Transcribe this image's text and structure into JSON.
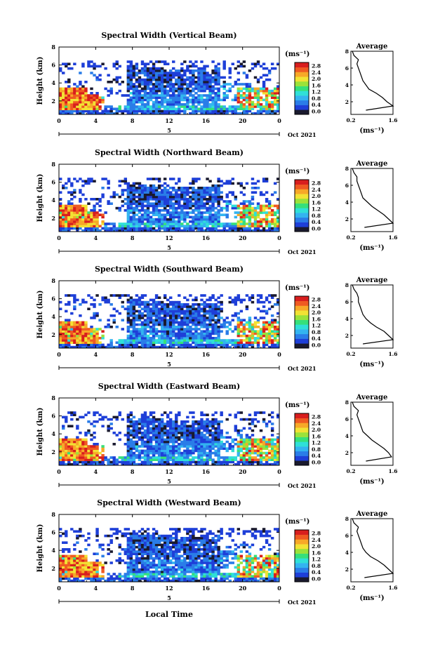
{
  "date_label": "Oct 2021",
  "xlabel": "Local Time",
  "xticks": [
    "0",
    "4",
    "8",
    "12",
    "16",
    "20",
    "0"
  ],
  "under_axis_tick": "5",
  "colorbar": {
    "unit": "(ms⁻¹)",
    "ticks": [
      "0.0",
      "0.4",
      "0.8",
      "1.2",
      "1.6",
      "2.0",
      "2.4",
      "2.8"
    ],
    "colors": [
      "#1a1a2e",
      "#1e3fd8",
      "#2a7de8",
      "#33b4f0",
      "#2fe0d8",
      "#36e07a",
      "#9be23a",
      "#f2e234",
      "#f7a828",
      "#ef5a22",
      "#d81e1e"
    ]
  },
  "avg_axis": {
    "xticks": [
      "0.2",
      "1.6"
    ],
    "yticks": [
      "2",
      "4",
      "6",
      "8"
    ],
    "xlabel": "(ms⁻¹)"
  },
  "panel_ylabel": "Height (km)",
  "panel_yticks": [
    "2",
    "4",
    "6",
    "8"
  ],
  "chart_data": [
    {
      "type": "heatmap",
      "title": "Spectral Width (Vertical Beam)",
      "xlabel": "",
      "ylabel": "Height (km)",
      "xlim": [
        0,
        24
      ],
      "ylim": [
        0.5,
        8
      ],
      "zlim": [
        0.0,
        2.8
      ],
      "average_profile": {
        "title": "Average",
        "xlim": [
          0.2,
          1.6
        ],
        "height_km": [
          1.0,
          1.5,
          2.0,
          2.5,
          3.0,
          3.5,
          4.0,
          4.5,
          5.0,
          5.5,
          6.0,
          6.5,
          7.0,
          7.5,
          8.0
        ],
        "width": [
          0.7,
          1.6,
          1.4,
          1.25,
          1.05,
          0.8,
          0.7,
          0.6,
          0.55,
          0.5,
          0.45,
          0.4,
          0.45,
          0.3,
          0.25
        ]
      }
    },
    {
      "type": "heatmap",
      "title": "Spectral Width (Northward Beam)",
      "xlabel": "",
      "ylabel": "Height (km)",
      "xlim": [
        0,
        24
      ],
      "ylim": [
        0.5,
        8
      ],
      "zlim": [
        0.0,
        2.8
      ],
      "average_profile": {
        "title": "Average",
        "xlim": [
          0.2,
          1.6
        ],
        "height_km": [
          1.0,
          1.5,
          2.0,
          2.5,
          3.0,
          3.5,
          4.0,
          4.5,
          5.0,
          5.5,
          6.0,
          6.5,
          7.0,
          7.5,
          8.0
        ],
        "width": [
          0.65,
          1.6,
          1.45,
          1.3,
          1.1,
          0.9,
          0.75,
          0.6,
          0.55,
          0.5,
          0.45,
          0.4,
          0.4,
          0.3,
          0.25
        ]
      }
    },
    {
      "type": "heatmap",
      "title": "Spectral Width (Southward Beam)",
      "xlabel": "",
      "ylabel": "Height (km)",
      "xlim": [
        0,
        24
      ],
      "ylim": [
        0.5,
        8
      ],
      "zlim": [
        0.0,
        2.8
      ],
      "average_profile": {
        "title": "Average",
        "xlim": [
          0.2,
          1.6
        ],
        "height_km": [
          1.0,
          1.5,
          2.0,
          2.5,
          3.0,
          3.5,
          4.0,
          4.5,
          5.0,
          5.5,
          6.0,
          6.5,
          7.0,
          7.5,
          8.0
        ],
        "width": [
          0.6,
          1.6,
          1.45,
          1.3,
          1.05,
          0.85,
          0.7,
          0.6,
          0.55,
          0.5,
          0.45,
          0.45,
          0.4,
          0.3,
          0.25
        ]
      }
    },
    {
      "type": "heatmap",
      "title": "Spectral Width (Eastward Beam)",
      "xlabel": "",
      "ylabel": "Height (km)",
      "xlim": [
        0,
        24
      ],
      "ylim": [
        0.5,
        8
      ],
      "zlim": [
        0.0,
        2.8
      ],
      "average_profile": {
        "title": "Average",
        "xlim": [
          0.2,
          1.6
        ],
        "height_km": [
          1.0,
          1.5,
          2.0,
          2.5,
          3.0,
          3.5,
          4.0,
          4.5,
          5.0,
          5.5,
          6.0,
          6.5,
          7.0,
          7.5,
          8.0
        ],
        "width": [
          0.7,
          1.55,
          1.45,
          1.3,
          1.1,
          0.9,
          0.75,
          0.6,
          0.55,
          0.5,
          0.45,
          0.4,
          0.45,
          0.3,
          0.25
        ]
      }
    },
    {
      "type": "heatmap",
      "title": "Spectral Width (Westward Beam)",
      "xlabel": "Local Time",
      "ylabel": "Height (km)",
      "xlim": [
        0,
        24
      ],
      "ylim": [
        0.5,
        8
      ],
      "zlim": [
        0.0,
        2.8
      ],
      "average_profile": {
        "title": "Average",
        "xlim": [
          0.2,
          1.6
        ],
        "height_km": [
          1.0,
          1.5,
          2.0,
          2.5,
          3.0,
          3.5,
          4.0,
          4.5,
          5.0,
          5.5,
          6.0,
          6.5,
          7.0,
          7.5,
          8.0
        ],
        "width": [
          0.65,
          1.6,
          1.45,
          1.3,
          1.1,
          0.85,
          0.7,
          0.6,
          0.55,
          0.5,
          0.45,
          0.4,
          0.45,
          0.3,
          0.25
        ]
      }
    }
  ]
}
